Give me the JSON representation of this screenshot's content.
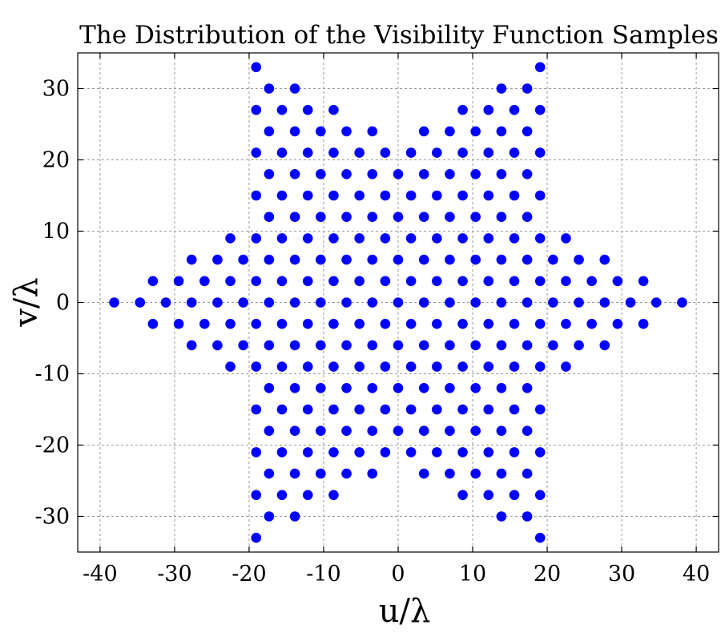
{
  "chart_data": {
    "type": "scatter",
    "title": "The Distribution of the Visibility Function Samples",
    "xlabel": "u/λ",
    "ylabel": "v/λ",
    "xlim": [
      -43,
      43
    ],
    "ylim": [
      -35,
      35
    ],
    "grid": true,
    "marker_color": "#0000ff",
    "xticks": [
      -40,
      -30,
      -20,
      -10,
      0,
      10,
      20,
      30,
      40
    ],
    "xtick_labels": [
      "-40",
      "-30",
      "-20",
      "-10",
      "0",
      "10",
      "20",
      "30",
      "40"
    ],
    "yticks": [
      -30,
      -20,
      -10,
      0,
      10,
      20,
      30
    ],
    "ytick_labels": [
      "-30",
      "-20",
      "-10",
      "0",
      "10",
      "20",
      "30"
    ],
    "sampling": {
      "description": "Hexagonal lattice of visibility samples with spacing 2*sqrt(3) wavelengths, restricted to a six-pointed star (union of two triangles)",
      "lattice_spacing": 3.4641,
      "star_tip_radius": 40,
      "inner_hexagon_apothem": 20
    }
  }
}
